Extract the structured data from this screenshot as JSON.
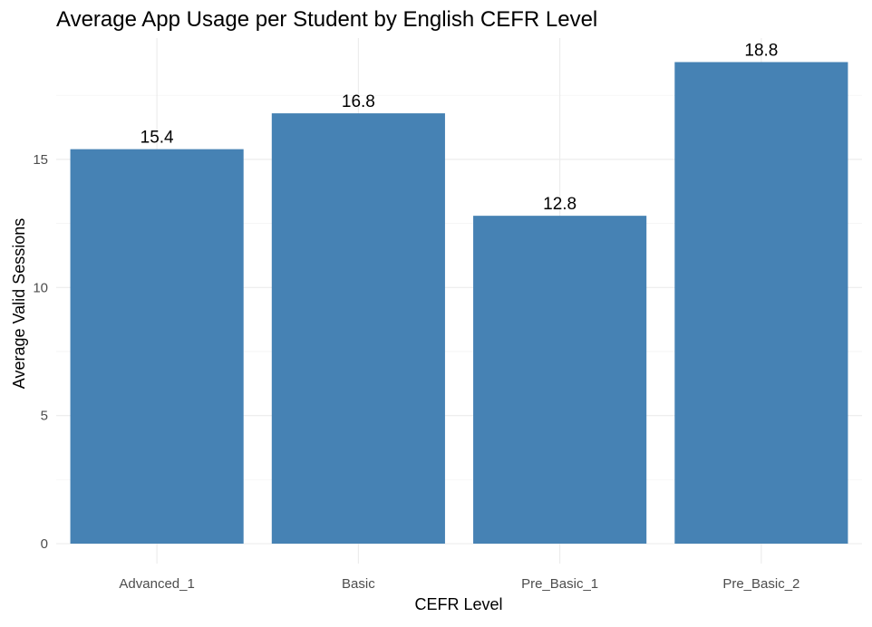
{
  "chart_data": {
    "type": "bar",
    "title": "Average App Usage per Student by English CEFR Level",
    "xlabel": "CEFR Level",
    "ylabel": "Average Valid Sessions",
    "categories": [
      "Advanced_1",
      "Basic",
      "Pre_Basic_1",
      "Pre_Basic_2"
    ],
    "values": [
      15.4,
      16.8,
      12.8,
      18.8
    ],
    "value_labels": [
      "15.4",
      "16.8",
      "12.8",
      "18.8"
    ],
    "ylim": [
      0,
      19.7
    ],
    "y_ticks": [
      0,
      5,
      10,
      15
    ],
    "y_tick_labels": [
      "0",
      "5",
      "10",
      "15"
    ],
    "grid": true,
    "legend": "none",
    "bar_color": "#4682b4"
  }
}
